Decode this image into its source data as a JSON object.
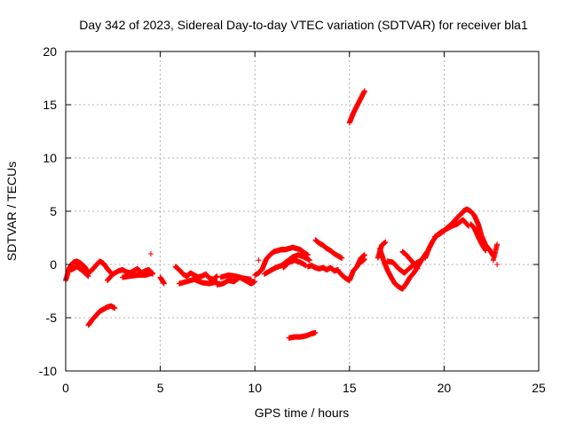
{
  "chart_data": {
    "type": "scatter",
    "title": "Day 342 of 2023, Sidereal Day-to-day VTEC variation (SDTVAR) for receiver bla1",
    "xlabel": "GPS time / hours",
    "ylabel": "SDTVAR / TECUs",
    "xlim": [
      0,
      25
    ],
    "ylim": [
      -10,
      20
    ],
    "xticks": [
      0,
      5,
      10,
      15,
      20,
      25
    ],
    "yticks": [
      -10,
      -5,
      0,
      5,
      10,
      15,
      20
    ],
    "xtick_labels": [
      "0",
      "5",
      "10",
      "15",
      "20",
      "25"
    ],
    "ytick_labels": [
      "-10",
      "-5",
      "0",
      "5",
      "10",
      "15",
      "20"
    ],
    "grid": true,
    "marker": "+",
    "color": "#ff0000",
    "series": [
      {
        "name": "bla1",
        "segments": [
          {
            "x": [
              0.0,
              0.2,
              0.4,
              0.6,
              0.8,
              1.0,
              1.2,
              1.4,
              1.6,
              1.8,
              2.0,
              2.2,
              2.4
            ],
            "y": [
              -1.5,
              -0.3,
              0.2,
              0.3,
              0.1,
              -0.2,
              -0.8,
              -0.5,
              -0.1,
              0.3,
              0.1,
              -0.4,
              -0.8
            ]
          },
          {
            "x": [
              0.3,
              0.6,
              0.9,
              1.2
            ],
            "y": [
              -0.5,
              -0.2,
              -0.6,
              -1.1
            ]
          },
          {
            "x": [
              1.2,
              1.4,
              1.6,
              1.8,
              2.0,
              2.2,
              2.4,
              2.6
            ],
            "y": [
              -5.7,
              -5.2,
              -4.8,
              -4.4,
              -4.2,
              -4.0,
              -3.9,
              -4.1
            ]
          },
          {
            "x": [
              2.2,
              2.5,
              2.8,
              3.0,
              3.2,
              3.4,
              3.6,
              3.8,
              4.0,
              4.2,
              4.4,
              4.6
            ],
            "y": [
              -1.5,
              -0.9,
              -0.6,
              -0.5,
              -0.7,
              -0.8,
              -0.6,
              -0.4,
              -0.8,
              -0.6,
              -0.5,
              -0.9
            ]
          },
          {
            "x": [
              3.0,
              3.4,
              3.8,
              4.2,
              4.6
            ],
            "y": [
              -1.2,
              -1.1,
              -1.0,
              -1.0,
              -0.8
            ]
          },
          {
            "x": [
              4.5
            ],
            "y": [
              1.0
            ]
          },
          {
            "x": [
              5.0,
              5.2
            ],
            "y": [
              -1.2,
              -1.8
            ]
          },
          {
            "x": [
              5.8,
              6.0,
              6.2,
              6.4,
              6.6,
              6.8,
              7.0,
              7.2,
              7.4,
              7.6,
              7.8,
              8.0
            ],
            "y": [
              -0.2,
              -0.5,
              -0.9,
              -1.1,
              -0.8,
              -1.0,
              -1.2,
              -1.1,
              -0.9,
              -1.3,
              -1.4,
              -1.1
            ]
          },
          {
            "x": [
              6.0,
              6.4,
              6.8,
              7.2,
              7.6,
              8.0
            ],
            "y": [
              -1.8,
              -1.6,
              -1.4,
              -1.7,
              -1.8,
              -1.6
            ]
          },
          {
            "x": [
              8.0,
              8.3,
              8.6,
              8.9,
              9.2,
              9.5,
              9.8,
              10.0
            ],
            "y": [
              -1.9,
              -1.8,
              -1.5,
              -1.6,
              -1.2,
              -1.5,
              -1.8,
              -1.6
            ]
          },
          {
            "x": [
              8.2,
              8.6,
              9.0,
              9.4,
              9.8
            ],
            "y": [
              -1.2,
              -1.0,
              -1.1,
              -1.3,
              -1.4
            ]
          },
          {
            "x": [
              10.0,
              10.2,
              10.4,
              10.6,
              10.8,
              11.0,
              11.2,
              11.4,
              11.6,
              11.8,
              12.0,
              12.2,
              12.4,
              12.6,
              12.8
            ],
            "y": [
              -1.0,
              -0.8,
              -0.4,
              0.5,
              0.9,
              1.2,
              1.3,
              1.4,
              1.4,
              1.5,
              1.6,
              1.5,
              1.4,
              1.1,
              0.9
            ]
          },
          {
            "x": [
              10.5,
              10.8,
              11.1,
              11.4,
              11.7,
              12.0,
              12.3,
              12.6,
              12.9
            ],
            "y": [
              -0.9,
              -0.6,
              -0.3,
              -0.1,
              0.3,
              0.7,
              0.9,
              0.7,
              0.4
            ]
          },
          {
            "x": [
              11.5,
              11.8,
              12.1,
              12.4,
              12.7
            ],
            "y": [
              -0.3,
              0.2,
              0.4,
              0.2,
              -0.1
            ]
          },
          {
            "x": [
              10.2
            ],
            "y": [
              0.4
            ]
          },
          {
            "x": [
              11.8,
              12.1,
              12.4,
              12.7,
              13.0,
              13.2
            ],
            "y": [
              -6.9,
              -6.8,
              -6.8,
              -6.7,
              -6.5,
              -6.4
            ]
          },
          {
            "x": [
              12.8,
              13.0,
              13.2,
              13.4,
              13.6,
              13.8,
              14.0,
              14.2,
              14.4
            ],
            "y": [
              -0.2,
              -0.1,
              -0.3,
              -0.4,
              -0.3,
              -0.5,
              -0.3,
              -0.6,
              -0.5
            ]
          },
          {
            "x": [
              13.2,
              13.4,
              13.6,
              13.8,
              14.0,
              14.2,
              14.4,
              14.6
            ],
            "y": [
              2.3,
              2.0,
              1.8,
              1.5,
              1.3,
              1.0,
              0.8,
              0.6
            ]
          },
          {
            "x": [
              14.4,
              14.6,
              14.8,
              15.0,
              15.2,
              15.4,
              15.6,
              15.8
            ],
            "y": [
              -0.6,
              -1.0,
              -1.3,
              -1.5,
              -0.6,
              -0.2,
              0.6,
              0.9
            ]
          },
          {
            "x": [
              15.0,
              15.2,
              15.4,
              15.6,
              15.8
            ],
            "y": [
              13.3,
              14.2,
              14.9,
              15.6,
              16.3
            ]
          },
          {
            "x": [
              15.6,
              15.8
            ],
            "y": [
              0.2,
              0.5
            ]
          },
          {
            "x": [
              16.5,
              16.7,
              16.9
            ],
            "y": [
              0.6,
              1.8,
              2.1
            ]
          },
          {
            "x": [
              16.6,
              16.8,
              17.0,
              17.2,
              17.4,
              17.6,
              17.8,
              18.0,
              18.2,
              18.4,
              18.6,
              18.8
            ],
            "y": [
              1.5,
              0.4,
              -0.5,
              -1.2,
              -1.8,
              -2.1,
              -2.3,
              -1.8,
              -1.2,
              -0.8,
              -0.2,
              0.4
            ]
          },
          {
            "x": [
              17.0,
              17.3,
              17.6,
              17.9,
              18.2,
              18.5,
              18.8,
              19.1
            ],
            "y": [
              0.3,
              0.2,
              -0.4,
              -0.8,
              -0.3,
              0.1,
              0.4,
              1.2
            ]
          },
          {
            "x": [
              17.8,
              18.0,
              18.3,
              18.6
            ],
            "y": [
              1.2,
              0.9,
              0.3,
              -0.4
            ]
          },
          {
            "x": [
              19.0,
              19.2,
              19.4,
              19.6,
              19.8,
              20.0,
              20.2,
              20.4,
              20.6,
              20.8,
              21.0
            ],
            "y": [
              0.6,
              1.5,
              2.2,
              2.7,
              3.0,
              3.2,
              3.5,
              3.8,
              4.2,
              4.6,
              4.9
            ]
          },
          {
            "x": [
              19.5,
              19.8,
              20.1,
              20.4,
              20.7,
              21.0,
              21.3
            ],
            "y": [
              2.6,
              2.9,
              3.3,
              3.6,
              3.8,
              4.2,
              3.6
            ]
          },
          {
            "x": [
              21.0,
              21.2,
              21.4,
              21.6,
              21.8,
              22.0,
              22.2,
              22.4,
              22.6
            ],
            "y": [
              5.0,
              5.2,
              5.0,
              4.6,
              3.8,
              2.6,
              1.8,
              1.4,
              0.8
            ]
          },
          {
            "x": [
              21.4,
              21.6,
              21.8,
              22.0,
              22.2
            ],
            "y": [
              3.8,
              3.4,
              2.6,
              1.9,
              1.3
            ]
          },
          {
            "x": [
              22.6,
              22.8
            ],
            "y": [
              0.4,
              1.9
            ]
          },
          {
            "x": [
              22.8
            ],
            "y": [
              0.0
            ]
          }
        ]
      }
    ]
  }
}
